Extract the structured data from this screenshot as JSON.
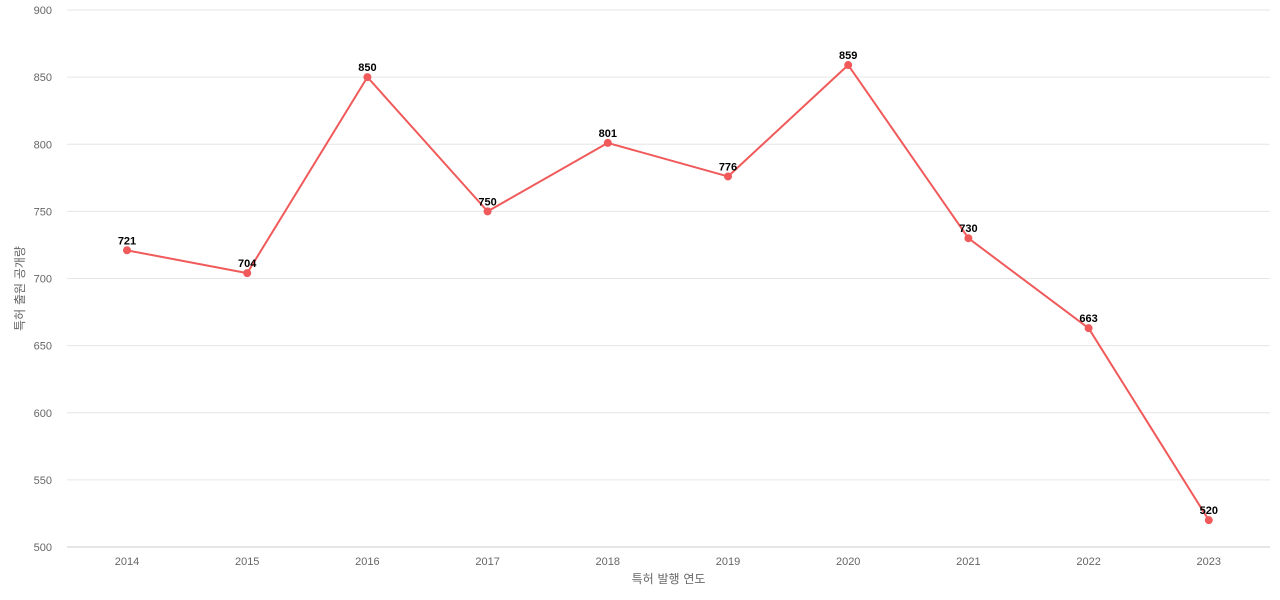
{
  "chart_data": {
    "type": "line",
    "title": "",
    "xlabel": "특허 발행 연도",
    "ylabel": "특허 출원 공개량",
    "categories": [
      "2014",
      "2015",
      "2016",
      "2017",
      "2018",
      "2019",
      "2020",
      "2021",
      "2022",
      "2023"
    ],
    "series": [
      {
        "values": [
          721,
          704,
          850,
          750,
          801,
          776,
          859,
          730,
          663,
          520
        ],
        "color": "#f05a5a"
      }
    ],
    "ylim": [
      500,
      900
    ],
    "yticks": [
      500,
      550,
      600,
      650,
      700,
      750,
      800,
      850,
      900
    ],
    "grid": true,
    "legend": "none",
    "data_labels": true
  }
}
